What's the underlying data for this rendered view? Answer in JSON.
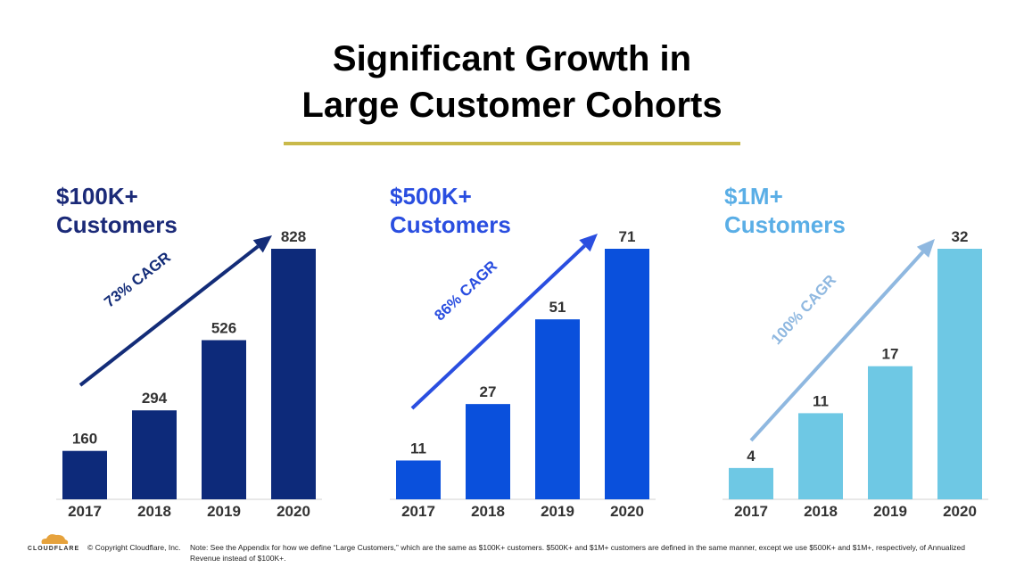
{
  "title_line1": "Significant Growth in",
  "title_line2": "Large Customer Cohorts",
  "colors": {
    "rule": "#c9b94a"
  },
  "chart_data": [
    {
      "type": "bar",
      "title_line1": "$100K+",
      "title_line2": "Customers",
      "categories": [
        "2017",
        "2018",
        "2019",
        "2020"
      ],
      "values": [
        160,
        294,
        526,
        828
      ],
      "annotation": "73% CAGR",
      "bar_color": "#0d2a7a",
      "title_color": "#1b2a78",
      "arrow_color": "#132c78",
      "ylim": [
        0,
        828
      ]
    },
    {
      "type": "bar",
      "title_line1": "$500K+",
      "title_line2": "Customers",
      "categories": [
        "2017",
        "2018",
        "2019",
        "2020"
      ],
      "values": [
        11,
        27,
        51,
        71
      ],
      "annotation": "86% CAGR",
      "bar_color": "#0a50dc",
      "title_color": "#2a4ee0",
      "arrow_color": "#2a4ee0",
      "ylim": [
        0,
        71
      ]
    },
    {
      "type": "bar",
      "title_line1": "$1M+",
      "title_line2": "Customers",
      "categories": [
        "2017",
        "2018",
        "2019",
        "2020"
      ],
      "values": [
        4,
        11,
        17,
        32
      ],
      "annotation": "100% CAGR",
      "bar_color": "#6ec8e4",
      "title_color": "#5aaee6",
      "arrow_color": "#8fb8e0",
      "ylim": [
        0,
        32
      ]
    }
  ],
  "footer": {
    "logo": "CLOUDFLARE",
    "copyright": "© Copyright Cloudflare, Inc.",
    "note": "Note: See the Appendix for how we define “Large Customers,” which are the same as $100K+ customers.  $500K+ and $1M+ customers are defined in the same manner, except we use $500K+ and $1M+, respectively, of Annualized Revenue instead of $100K+."
  }
}
